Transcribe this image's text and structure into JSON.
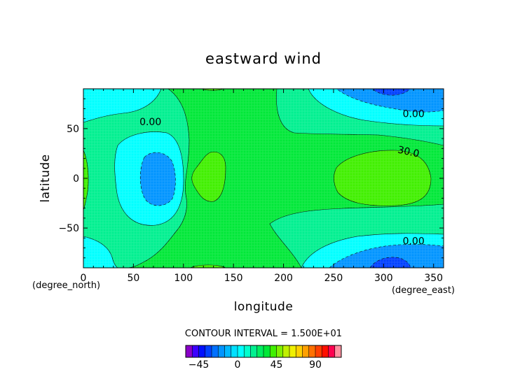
{
  "chart_data": {
    "type": "contour",
    "title": "eastward wind",
    "xlabel": "longitude",
    "ylabel": "latitude",
    "x_units": "(degree_east)",
    "y_units": "(degree_north)",
    "xlim": [
      0,
      360
    ],
    "ylim": [
      -90,
      90
    ],
    "x_ticks": [
      0,
      50,
      100,
      150,
      200,
      250,
      300,
      350
    ],
    "y_ticks": [
      -50,
      0,
      50
    ],
    "contour_interval_label": "CONTOUR INTERVAL = 1.500E+01",
    "contour_labels": [
      {
        "text": "0.00",
        "x": 67,
        "y": 57
      },
      {
        "text": "0.00",
        "x": 330,
        "y": 65
      },
      {
        "text": "30.0",
        "x": 325,
        "y": 27
      },
      {
        "text": "0.00",
        "x": 330,
        "y": -63
      }
    ],
    "features": [
      {
        "name": "low",
        "x": 75,
        "y": 0,
        "value": -15
      },
      {
        "name": "high",
        "x": 130,
        "y": 0,
        "value": 30
      },
      {
        "name": "high",
        "x": 300,
        "y": 0,
        "value": 30
      },
      {
        "name": "low",
        "x": 305,
        "y": 85,
        "value": -30
      },
      {
        "name": "low",
        "x": 305,
        "y": -85,
        "value": -30
      }
    ],
    "colorbar": {
      "levels": [
        -60,
        -52.5,
        -45,
        -37.5,
        -30,
        -22.5,
        -15,
        -7.5,
        0,
        7.5,
        15,
        22.5,
        30,
        37.5,
        45,
        52.5,
        60,
        67.5,
        75,
        82.5,
        90,
        97.5,
        105,
        112.5
      ],
      "colors": [
        "#8a00c8",
        "#3c00ff",
        "#0010ff",
        "#0040ff",
        "#0070ff",
        "#0094ff",
        "#00b8ff",
        "#00e0ff",
        "#00ffff",
        "#00ffcc",
        "#00f090",
        "#00ee60",
        "#00e838",
        "#40f000",
        "#80f000",
        "#c0f000",
        "#f0f000",
        "#ffd000",
        "#ffa000",
        "#ff7000",
        "#ff4000",
        "#ff1000",
        "#ff0050",
        "#ff90a0"
      ],
      "tick_labels": [
        "-45",
        "0",
        "45",
        "90"
      ],
      "tick_values": [
        -45,
        0,
        45,
        90
      ]
    }
  }
}
